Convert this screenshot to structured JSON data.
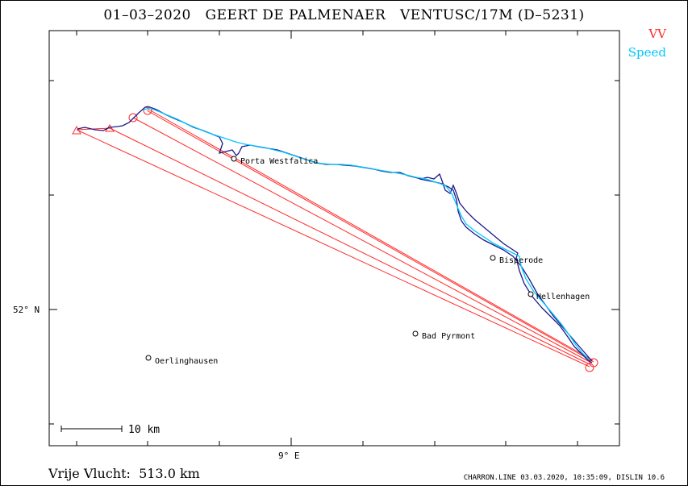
{
  "header": {
    "title": "01–03–2020   GEERT DE PALMENAER   VENTUSC/17M (D–5231)"
  },
  "legend": {
    "items": [
      {
        "label": "VV",
        "color": "#ff2a2a"
      },
      {
        "label": "Speed",
        "color": "#00c8ff"
      }
    ]
  },
  "axes": {
    "lat_label": "52° N",
    "lon_label": "9° E"
  },
  "scale_bar": {
    "label": "10  km"
  },
  "places": [
    {
      "name": "Porta Westfalica"
    },
    {
      "name": "Bisperode"
    },
    {
      "name": "Hellenhagen"
    },
    {
      "name": "Bad Pyrmont"
    },
    {
      "name": "Oerlinghausen"
    }
  ],
  "footer": {
    "distance": "Vrije Vlucht:  513.0 km",
    "credit": "CHARRON.LINE 03.03.2020, 10:35:09, DISLIN 10.6"
  },
  "colors": {
    "track_dark": "#1a1a8c",
    "track_speed": "#00c8ff",
    "task_lines": "#ff2a2a"
  }
}
